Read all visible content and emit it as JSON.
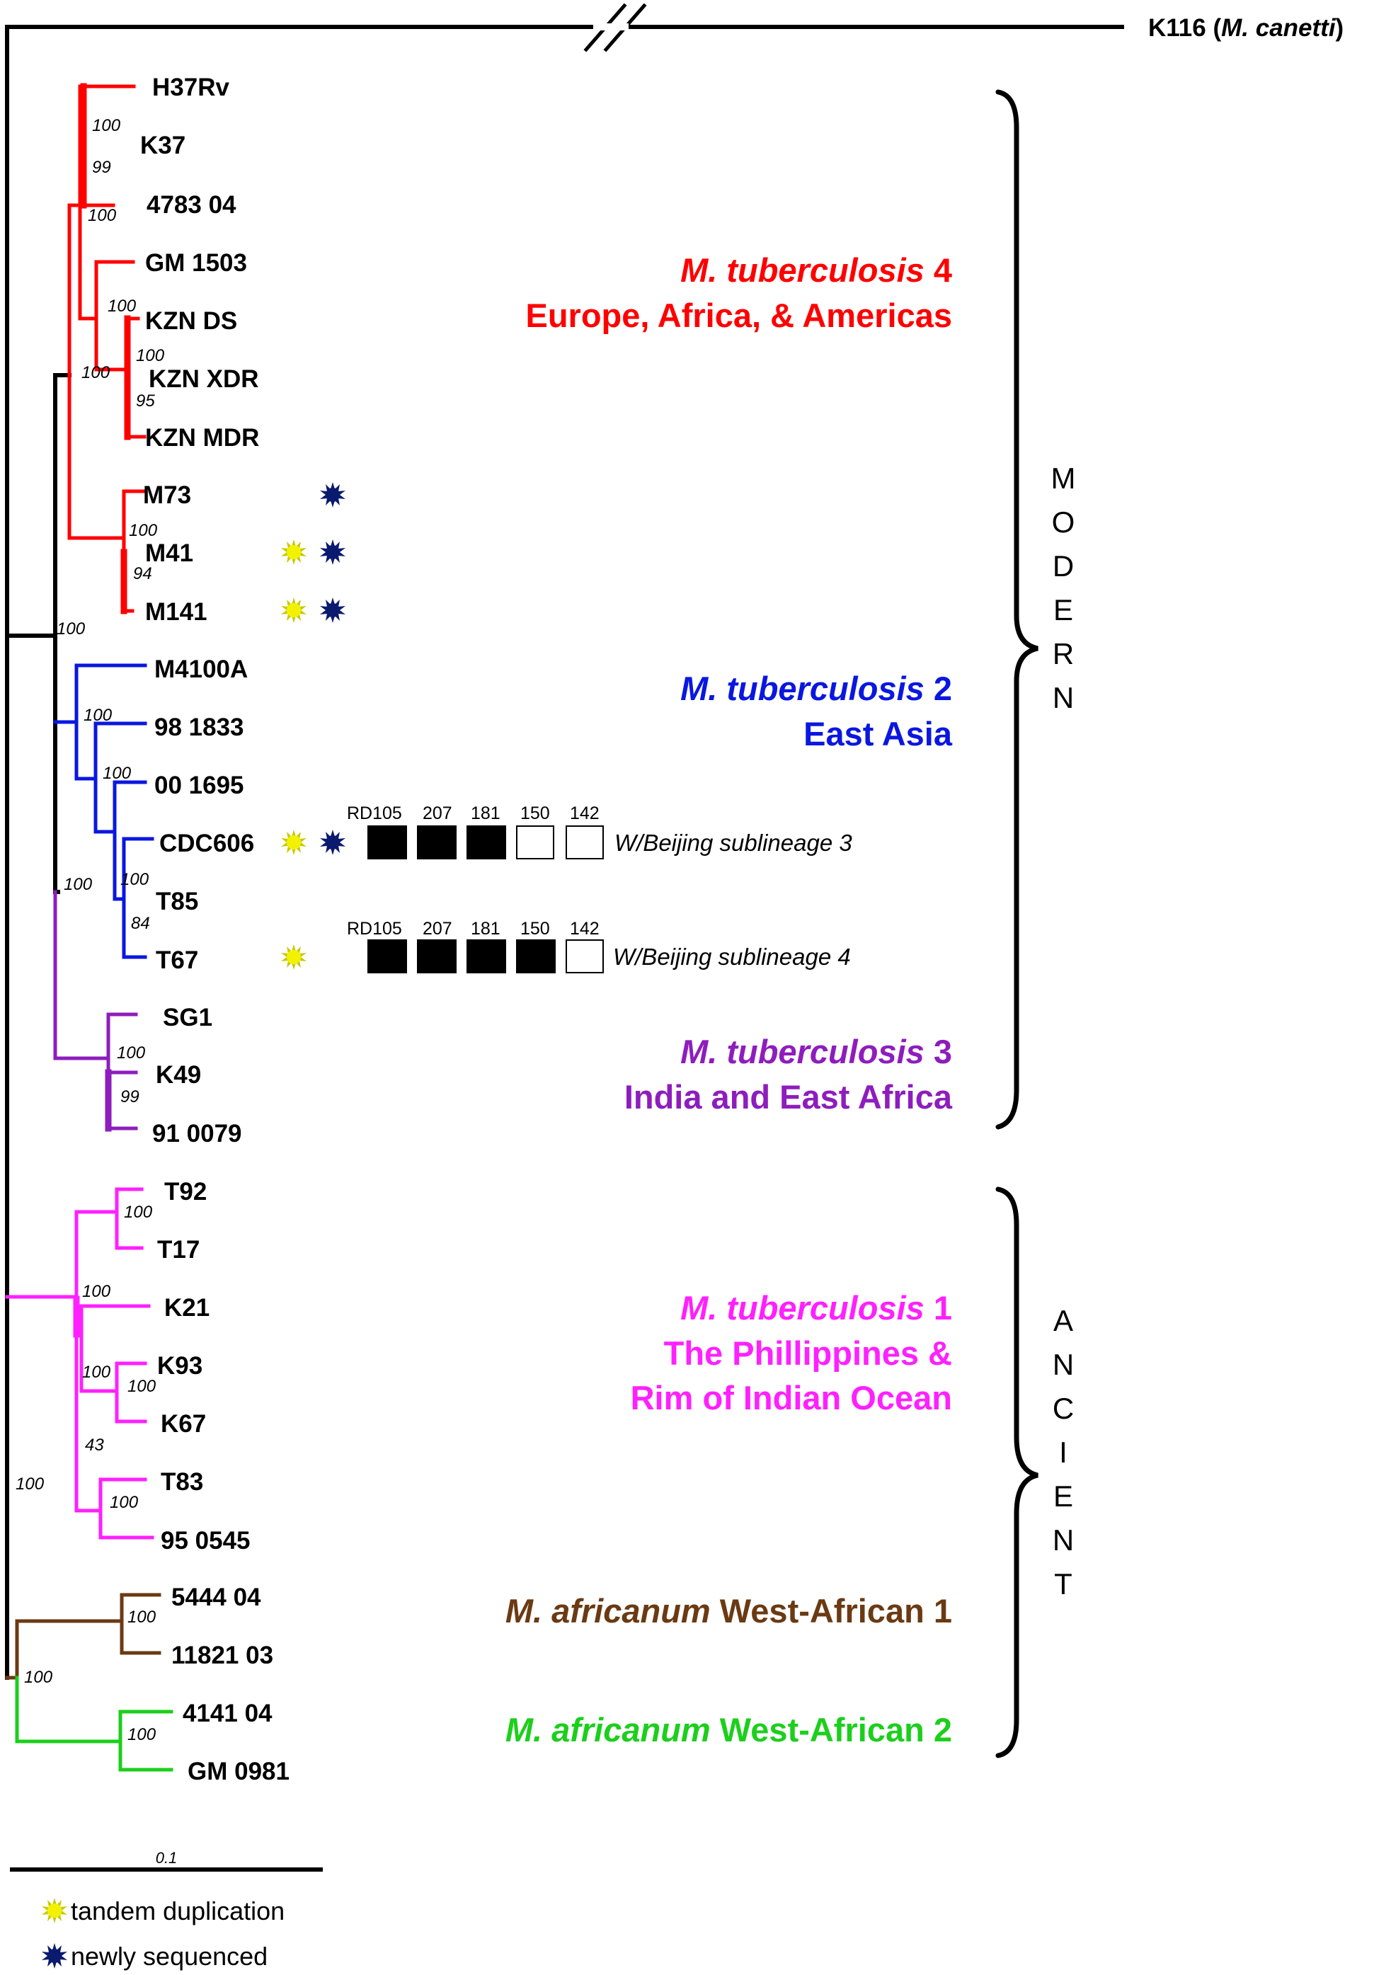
{
  "taxa": {
    "outgroup": {
      "name": "K116 (",
      "species": "M. canetti",
      "close": ")"
    },
    "h37rv": "H37Rv",
    "k37": "K37",
    "t478304": "4783 04",
    "gm1503": "GM 1503",
    "kznds": "KZN DS",
    "kznxdr": "KZN XDR",
    "kznmdr": "KZN MDR",
    "m73": "M73",
    "m41": "M41",
    "m141": "M141",
    "m4100a": "M4100A",
    "t981833": "98 1833",
    "t001695": "00 1695",
    "cdc606": "CDC606",
    "t85": "T85",
    "t67": "T67",
    "sg1": "SG1",
    "k49": "K49",
    "t910079": "91 0079",
    "t92": "T92",
    "t17": "T17",
    "k21": "K21",
    "k93": "K93",
    "k67": "K67",
    "t83": "T83",
    "t950545": "95 0545",
    "t544404": "5444 04",
    "t1182103": "11821 03",
    "t414104": "4141 04",
    "gm0981": "GM 0981"
  },
  "bootstrap": {
    "b1": "100",
    "b2": "99",
    "b3": "100",
    "b4": "100",
    "b5": "100",
    "b6": "95",
    "b7": "100",
    "b8": "100",
    "b9": "94",
    "b10": "100",
    "b11": "100",
    "b12": "100",
    "b13": "100",
    "b14": "84",
    "b15": "100",
    "b16": "100",
    "b17": "99",
    "b18": "100",
    "b19": "100",
    "b20": "100",
    "b21": "100",
    "b22": "43",
    "b23": "100",
    "b24": "100",
    "b25": "100",
    "b26": "100"
  },
  "clades": {
    "mtb4": {
      "species": "M. tuberculosis",
      "num": " 4",
      "region": "Europe, Africa, & Americas",
      "color": "#ff0000"
    },
    "mtb2": {
      "species": "M. tuberculosis",
      "num": " 2",
      "region": "East Asia",
      "color": "#0a17e0"
    },
    "mtb3": {
      "species": "M. tuberculosis",
      "num": " 3",
      "region": "India and East Africa",
      "color": "#8e1dbd"
    },
    "mtb1": {
      "species": "M. tuberculosis",
      "num": " 1",
      "region1": "The Phillippines &",
      "region2": "Rim of Indian Ocean",
      "color": "#ff20ff"
    },
    "maf1": {
      "species": "M. africanum",
      "rest": " West-African 1",
      "color": "#6b3a12"
    },
    "maf2": {
      "species": "M. africanum",
      "rest": " West-African 2",
      "color": "#1ccf1c"
    }
  },
  "rd_regions": {
    "headers": [
      "RD105",
      "207",
      "181",
      "150",
      "142"
    ],
    "row1": {
      "filled": [
        true,
        true,
        true,
        false,
        false
      ],
      "label": "W/Beijing sublineage 3"
    },
    "row2": {
      "filled": [
        true,
        true,
        true,
        true,
        false
      ],
      "label": "W/Beijing sublineage 4"
    }
  },
  "groups": {
    "modern": [
      "M",
      "O",
      "D",
      "E",
      "R",
      "N"
    ],
    "ancient": [
      "A",
      "N",
      "C",
      "I",
      "E",
      "N",
      "T"
    ]
  },
  "scale_bar": {
    "label": "0.1"
  },
  "legend": {
    "tandem": {
      "label": "tandem duplication",
      "color": "#f2f200"
    },
    "newly": {
      "label": "newly sequenced",
      "color": "#0a1a6e"
    }
  }
}
